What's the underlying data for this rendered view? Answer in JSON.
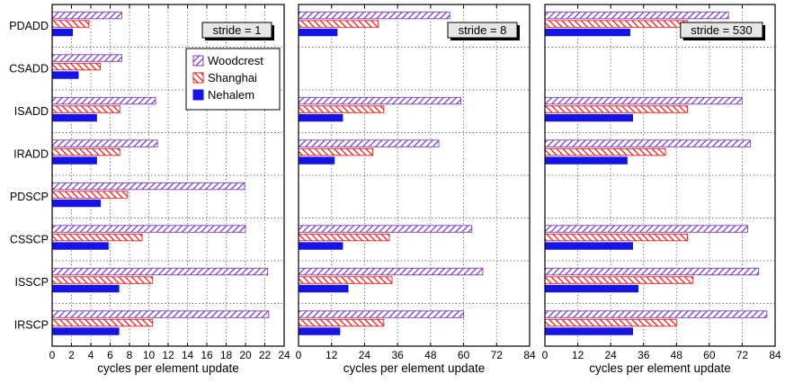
{
  "chart_data": {
    "type": "bar",
    "orientation": "horizontal",
    "categories": [
      "PDADD",
      "CSADD",
      "ISADD",
      "IRADD",
      "PDSCP",
      "CSSCP",
      "ISSCP",
      "IRSCP"
    ],
    "legend": {
      "placement": "top-right of first panel",
      "entries": [
        {
          "name": "Woodcrest",
          "color": "#7B3FBF",
          "pattern": "hatch"
        },
        {
          "name": "Shanghai",
          "color": "#E8201E",
          "pattern": "hatch"
        },
        {
          "name": "Nehalem",
          "color": "#1414E6",
          "pattern": "solid"
        }
      ]
    },
    "grid": true,
    "panels": [
      {
        "label": "stride = 1",
        "xlabel": "cycles per element update",
        "xlim": [
          0,
          24
        ],
        "xticks": [
          "0",
          "2",
          "4",
          "6",
          "8",
          "10",
          "12",
          "14",
          "16",
          "18",
          "20",
          "22",
          "24"
        ],
        "series": [
          {
            "name": "Woodcrest",
            "values": [
              7.2,
              7.2,
              10.7,
              10.9,
              19.9,
              20.0,
              22.3,
              22.4
            ]
          },
          {
            "name": "Shanghai",
            "values": [
              3.8,
              5.0,
              7.0,
              7.0,
              7.8,
              9.3,
              10.4,
              10.4
            ]
          },
          {
            "name": "Nehalem",
            "values": [
              2.1,
              2.7,
              4.6,
              4.6,
              5.0,
              5.8,
              6.9,
              6.9
            ]
          }
        ]
      },
      {
        "label": "stride = 8",
        "xlabel": "cycles per element update",
        "xlim": [
          0,
          84
        ],
        "xticks": [
          "0",
          "12",
          "24",
          "36",
          "48",
          "60",
          "72",
          "84"
        ],
        "series": [
          {
            "name": "Woodcrest",
            "values": [
              55,
              0,
              59,
              51,
              0,
              63,
              67,
              60
            ]
          },
          {
            "name": "Shanghai",
            "values": [
              29,
              0,
              31,
              27,
              0,
              33,
              34,
              31
            ]
          },
          {
            "name": "Nehalem",
            "values": [
              14,
              0,
              16,
              13,
              0,
              16,
              18,
              15
            ]
          }
        ]
      },
      {
        "label": "stride = 530",
        "xlabel": "cycles per element update",
        "xlim": [
          0,
          84
        ],
        "xticks": [
          "0",
          "12",
          "24",
          "36",
          "48",
          "60",
          "72",
          "84"
        ],
        "series": [
          {
            "name": "Woodcrest",
            "values": [
              67,
              0,
              72,
              75,
              0,
              74,
              78,
              81
            ]
          },
          {
            "name": "Shanghai",
            "values": [
              52,
              0,
              52,
              44,
              0,
              52,
              54,
              48
            ]
          },
          {
            "name": "Nehalem",
            "values": [
              31,
              0,
              32,
              30,
              0,
              32,
              34,
              32
            ]
          }
        ]
      }
    ]
  }
}
